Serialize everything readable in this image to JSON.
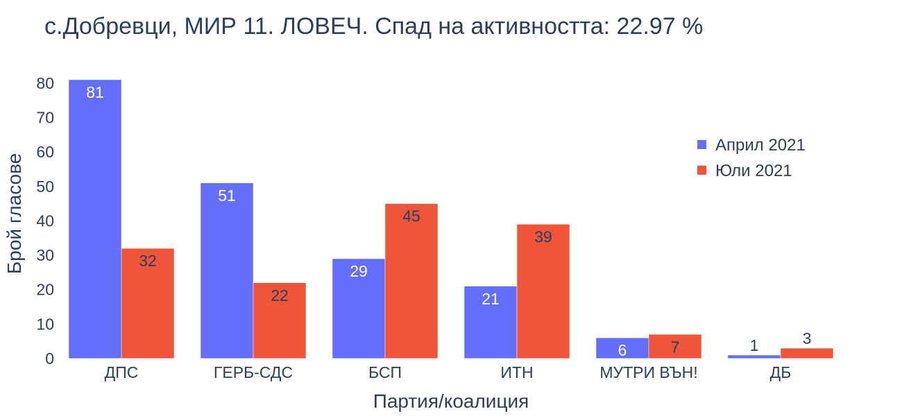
{
  "chart_data": {
    "type": "bar",
    "title": "с.Добревци, МИР 11. ЛОВЕЧ. Спад на активността: 22.97 %",
    "xlabel": "Партия/коалиция",
    "ylabel": "Брой гласове",
    "categories": [
      "ДПС",
      "ГЕРБ-СДС",
      "БСП",
      "ИТН",
      "МУТРИ ВЪН!",
      "ДБ"
    ],
    "series": [
      {
        "name": "Април 2021",
        "color": "#636efa",
        "values": [
          81,
          51,
          29,
          21,
          6,
          1
        ]
      },
      {
        "name": "Юли 2021",
        "color": "#ef553b",
        "values": [
          32,
          22,
          45,
          39,
          7,
          3
        ]
      }
    ],
    "ylim": [
      0,
      82
    ],
    "yticks": [
      0,
      10,
      20,
      30,
      40,
      50,
      60,
      70,
      80
    ],
    "grid": false,
    "legend_position": "top-right"
  }
}
